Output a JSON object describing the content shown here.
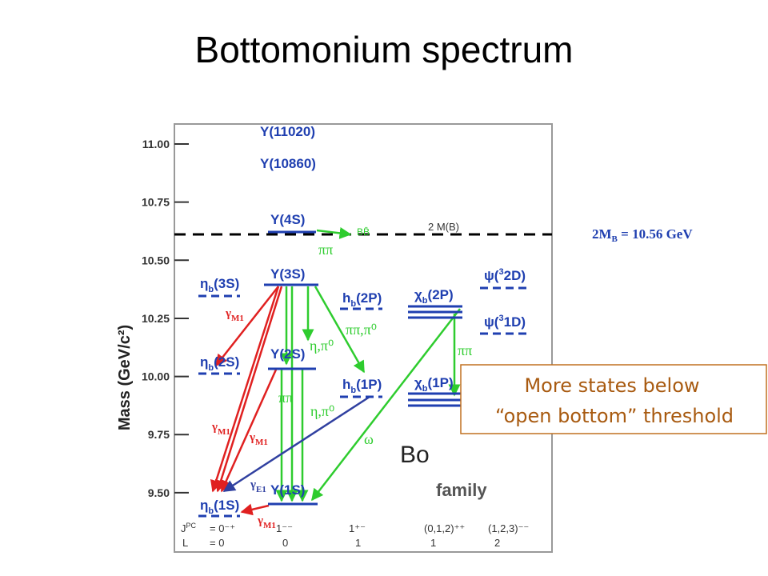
{
  "title": "Bottomonium spectrum",
  "axis": {
    "label": "Mass (GeV/c²)",
    "ylim": [
      9.245,
      11.086
    ],
    "ticks": [
      {
        "value": 11,
        "label": "11.00"
      },
      {
        "value": 10.75,
        "label": "10.75"
      },
      {
        "value": 10.5,
        "label": "10.50"
      },
      {
        "value": 10.25,
        "label": "10.25"
      },
      {
        "value": 10,
        "label": "10.00"
      },
      {
        "value": 9.75,
        "label": "9.75"
      },
      {
        "value": 9.5,
        "label": "9.50"
      }
    ]
  },
  "threshold": {
    "label": "2 M(B)",
    "decay": "BB̄",
    "note": {
      "main": "2M",
      "sub": "B",
      "rest": " = 10.56 GeV"
    }
  },
  "states": [
    {
      "sym": "Υ",
      "term": "(11020)"
    },
    {
      "sym": "Υ",
      "term": "(10860)"
    },
    {
      "sym": "Υ",
      "term": "(4S)"
    },
    {
      "sym": "Υ",
      "term": "(3S)"
    },
    {
      "sym": "η",
      "sub": "b",
      "term": "(3S)"
    },
    {
      "sym": "h",
      "sub": "b",
      "term": "(2P)"
    },
    {
      "sym": "χ",
      "sub": "b",
      "term": "(2P)"
    },
    {
      "sym": "ψ(",
      "sup": "3",
      "term": "2D)"
    },
    {
      "sym": "ψ(",
      "sup": "3",
      "term": "1D)"
    },
    {
      "sym": "Υ",
      "term": "(2S)"
    },
    {
      "sym": "η",
      "sub": "b",
      "term": "(2S)"
    },
    {
      "sym": "h",
      "sub": "b",
      "term": "(1P)"
    },
    {
      "sym": "χ",
      "sub": "b",
      "term": "(1P)"
    },
    {
      "sym": "Υ",
      "term": "(1S)"
    },
    {
      "sym": "η",
      "sub": "b",
      "term": "(1S)"
    }
  ],
  "transitions": [
    {
      "sym": "ππ"
    },
    {
      "sym": "ππ,π⁰"
    },
    {
      "sym": "η,π⁰"
    },
    {
      "sym": "ππ"
    },
    {
      "sym": "η,π⁰"
    },
    {
      "sym": "ω"
    },
    {
      "sym": "ππ"
    },
    {
      "sym": "γ",
      "sub": "M1"
    },
    {
      "sym": "γ",
      "sub": "M1"
    },
    {
      "sym": "γ",
      "sub": "M1"
    },
    {
      "sym": "γ",
      "sub": "M1"
    },
    {
      "sym": "γ",
      "sub": "E1"
    }
  ],
  "quantum_numbers": {
    "jpc_label": {
      "main": "J",
      "sup": "PC"
    },
    "jpc_values": [
      "= 0⁻⁺",
      "1⁻⁻",
      "1⁺⁻",
      "(0,1,2)⁺⁺",
      "(1,2,3)⁻⁻"
    ],
    "l_label": "L",
    "l_values": [
      "= 0",
      "0",
      "1",
      "1",
      "2"
    ]
  },
  "background_text": [
    "Bo",
    "family"
  ],
  "callout": {
    "line1": "More states below",
    "line2": "“open bottom” threshold"
  }
}
